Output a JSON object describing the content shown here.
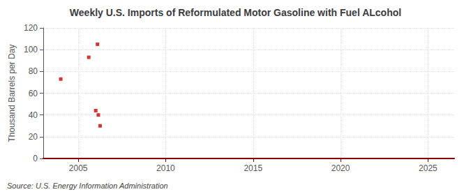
{
  "chart_data": {
    "type": "scatter",
    "title": "Weekly U.S. Imports of Reformulated Motor Gasoline with Fuel ALcohol",
    "ylabel": "Thousand Barrels per Day",
    "annotations": [
      "Source: U.S. Energy Information Administration"
    ],
    "x": [
      2004.0,
      2005.6,
      2006.1,
      2006.0,
      2006.15,
      2006.25
    ],
    "values": [
      73,
      93,
      105,
      44,
      40,
      30
    ],
    "color": "#cc0000",
    "marker": "square",
    "xlim": [
      2003.0,
      2026.5
    ],
    "ylim": [
      0,
      120
    ],
    "xticks": [
      2005,
      2010,
      2015,
      2020,
      2025
    ],
    "yticks": [
      0,
      20,
      40,
      60,
      80,
      100,
      120
    ],
    "grid": true
  }
}
